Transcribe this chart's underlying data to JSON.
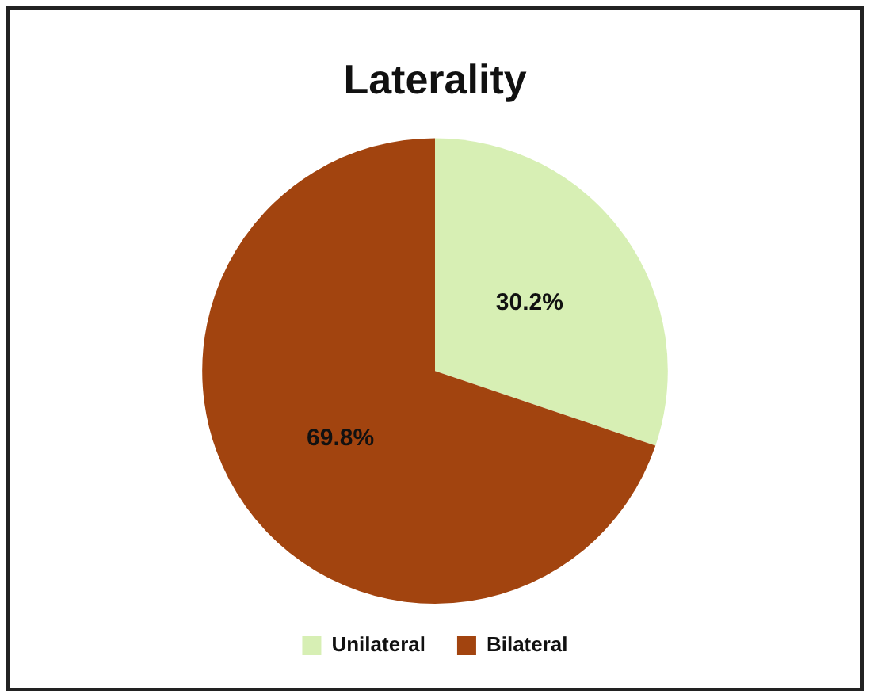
{
  "chart_data": {
    "type": "pie",
    "title": "Laterality",
    "categories": [
      "Unilateral",
      "Bilateral"
    ],
    "values": [
      30.2,
      69.8
    ],
    "value_labels": [
      "30.2%",
      "69.8%"
    ],
    "colors": [
      "#d7efb4",
      "#a2440f"
    ],
    "legend": "bottom"
  }
}
